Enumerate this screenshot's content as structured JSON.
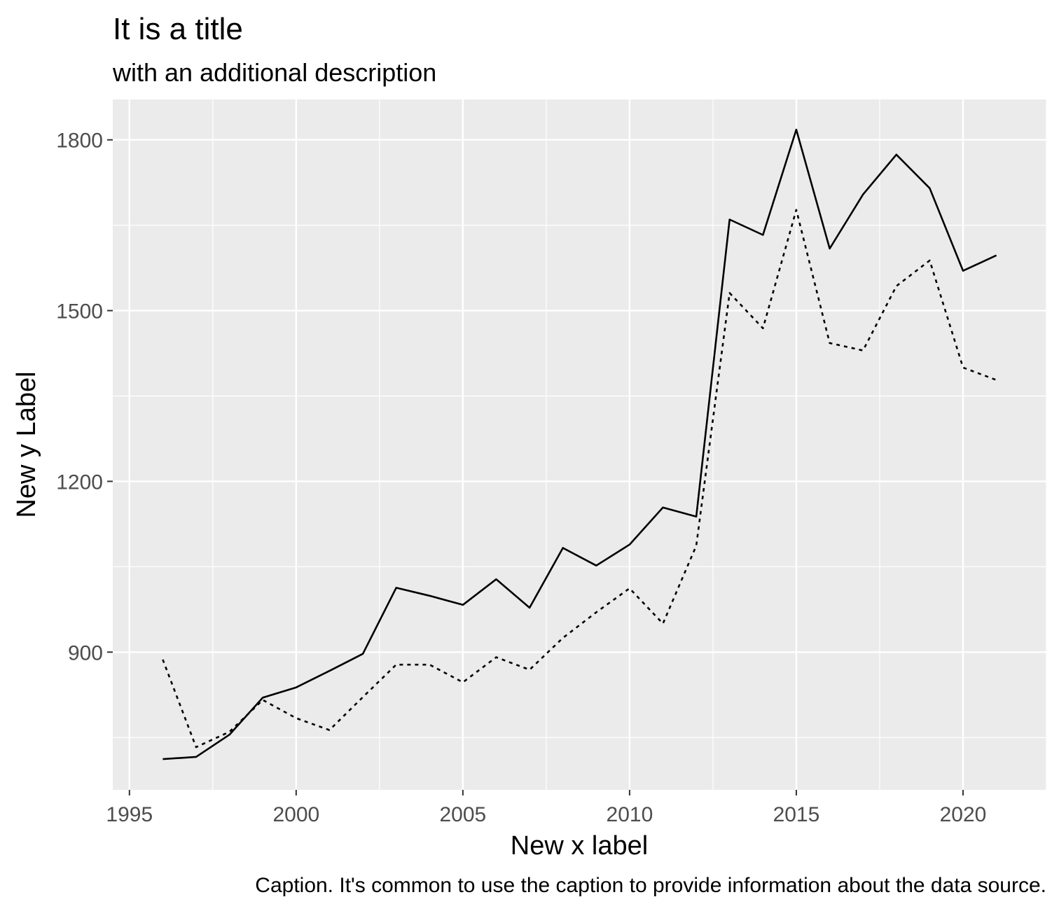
{
  "chart_data": {
    "type": "line",
    "title": "It is a title",
    "subtitle": "with an additional description",
    "xlabel": "New x label",
    "ylabel": "New y Label",
    "caption": "Caption. It's common to use the caption to provide information about the data source.",
    "x": [
      1996,
      1997,
      1998,
      1999,
      2000,
      2001,
      2002,
      2003,
      2004,
      2005,
      2006,
      2007,
      2008,
      2009,
      2010,
      2011,
      2012,
      2013,
      2014,
      2015,
      2016,
      2017,
      2018,
      2019,
      2020,
      2021
    ],
    "series": [
      {
        "line_style": "solid",
        "values": [
          712,
          716,
          755,
          820,
          838,
          867,
          897,
          1013,
          999,
          983,
          1028,
          978,
          1083,
          1052,
          1089,
          1154,
          1138,
          1660,
          1633,
          1818,
          1609,
          1704,
          1774,
          1715,
          1570,
          1597
        ]
      },
      {
        "line_style": "dotted",
        "values": [
          887,
          733,
          760,
          816,
          784,
          763,
          821,
          878,
          878,
          847,
          891,
          869,
          925,
          970,
          1012,
          950,
          1087,
          1531,
          1469,
          1677,
          1443,
          1430,
          1543,
          1588,
          1400,
          1378
        ]
      }
    ],
    "xlim": [
      1994.5,
      2022.5
    ],
    "ylim": [
      658,
      1871
    ],
    "x_ticks": [
      1995,
      2000,
      2005,
      2010,
      2015,
      2020
    ],
    "y_ticks": [
      900,
      1200,
      1500,
      1800
    ],
    "grid": true,
    "legend": "none",
    "colors": {
      "panel_background": "#EBEBEB",
      "grid": "#FFFFFF",
      "line": "#000000",
      "tick_label": "#4D4D4D",
      "text": "#000000"
    }
  }
}
